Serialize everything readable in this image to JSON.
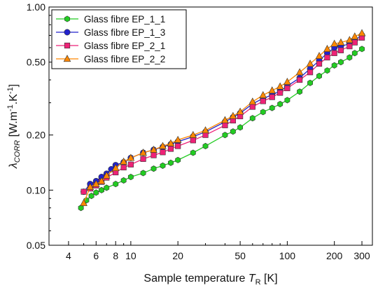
{
  "chart_data": {
    "type": "line",
    "xscale": "log",
    "yscale": "log",
    "xlim": [
      3,
      350
    ],
    "ylim": [
      0.05,
      1.0
    ],
    "xticks": [
      4,
      6,
      8,
      10,
      20,
      50,
      100,
      200,
      300
    ],
    "xtick_labels": [
      "4",
      "6",
      "8",
      "10",
      "20",
      "50",
      "100",
      "200",
      "300"
    ],
    "yticks": [
      0.05,
      0.1,
      0.2,
      0.5,
      1.0
    ],
    "ytick_labels": [
      "0.05",
      "0.10",
      "0.20",
      "0.50",
      "1.00"
    ],
    "xlabel": {
      "main": "Sample temperature ",
      "var": "T",
      "sub": "R",
      "unit": " [K]"
    },
    "ylabel": {
      "var": "λ",
      "sub": "CORR",
      "unit": " [W.m",
      "sup1": "-1",
      "mid": ".K",
      "sup2": "-1",
      "end": "]"
    },
    "grid": false,
    "legend_position": "top-left",
    "series": [
      {
        "name": "Glass fibre EP_1_1",
        "color": "#22cc22",
        "marker": "hexagon",
        "x": [
          4.8,
          5.2,
          5.6,
          6,
          6.5,
          7,
          8,
          9,
          10,
          12,
          14,
          16,
          18,
          20,
          25,
          30,
          40,
          45,
          50,
          60,
          70,
          80,
          90,
          100,
          120,
          140,
          160,
          180,
          200,
          220,
          250,
          270,
          300
        ],
        "y": [
          0.08,
          0.088,
          0.093,
          0.097,
          0.1,
          0.103,
          0.108,
          0.113,
          0.118,
          0.124,
          0.131,
          0.136,
          0.141,
          0.146,
          0.16,
          0.174,
          0.2,
          0.209,
          0.22,
          0.247,
          0.267,
          0.281,
          0.295,
          0.31,
          0.345,
          0.385,
          0.42,
          0.45,
          0.48,
          0.5,
          0.53,
          0.56,
          0.59
        ]
      },
      {
        "name": "Glass fibre EP_1_3",
        "color": "#2222cc",
        "marker": "circle",
        "x": [
          5,
          5.5,
          6,
          6.5,
          7,
          7.5,
          8,
          9,
          10,
          12,
          14,
          16,
          18,
          20,
          25,
          30,
          40,
          45,
          50,
          60,
          70,
          80,
          90,
          100,
          120,
          140,
          160,
          180,
          200,
          220,
          250,
          270,
          300
        ],
        "y": [
          0.098,
          0.108,
          0.112,
          0.118,
          0.123,
          0.13,
          0.137,
          0.142,
          0.15,
          0.16,
          0.166,
          0.172,
          0.178,
          0.184,
          0.196,
          0.208,
          0.236,
          0.25,
          0.263,
          0.296,
          0.317,
          0.331,
          0.348,
          0.37,
          0.41,
          0.46,
          0.51,
          0.56,
          0.6,
          0.61,
          0.63,
          0.66,
          0.7
        ]
      },
      {
        "name": "Glass fibre EP_2_1",
        "color": "#ee2277",
        "marker": "square",
        "x": [
          5,
          5.5,
          6,
          6.5,
          7,
          8,
          9,
          10,
          12,
          14,
          16,
          18,
          20,
          25,
          30,
          40,
          45,
          50,
          60,
          70,
          80,
          90,
          100,
          120,
          140,
          160,
          180,
          200,
          220,
          250,
          270,
          300
        ],
        "y": [
          0.098,
          0.102,
          0.106,
          0.111,
          0.117,
          0.125,
          0.133,
          0.138,
          0.148,
          0.155,
          0.161,
          0.168,
          0.174,
          0.187,
          0.2,
          0.226,
          0.24,
          0.253,
          0.285,
          0.306,
          0.322,
          0.34,
          0.36,
          0.4,
          0.44,
          0.49,
          0.53,
          0.56,
          0.58,
          0.61,
          0.64,
          0.68
        ]
      },
      {
        "name": "Glass fibre EP_2_2",
        "color": "#ff8800",
        "marker": "triangle",
        "x": [
          5,
          5.5,
          6,
          6.5,
          7,
          8,
          9,
          10,
          12,
          14,
          16,
          18,
          20,
          25,
          30,
          40,
          45,
          50,
          60,
          70,
          80,
          90,
          100,
          120,
          140,
          160,
          180,
          200,
          220,
          250,
          270,
          300
        ],
        "y": [
          0.085,
          0.104,
          0.108,
          0.112,
          0.12,
          0.132,
          0.143,
          0.15,
          0.16,
          0.166,
          0.174,
          0.18,
          0.188,
          0.2,
          0.212,
          0.241,
          0.254,
          0.268,
          0.304,
          0.33,
          0.35,
          0.368,
          0.39,
          0.44,
          0.49,
          0.54,
          0.59,
          0.63,
          0.64,
          0.66,
          0.69,
          0.72
        ]
      }
    ]
  }
}
